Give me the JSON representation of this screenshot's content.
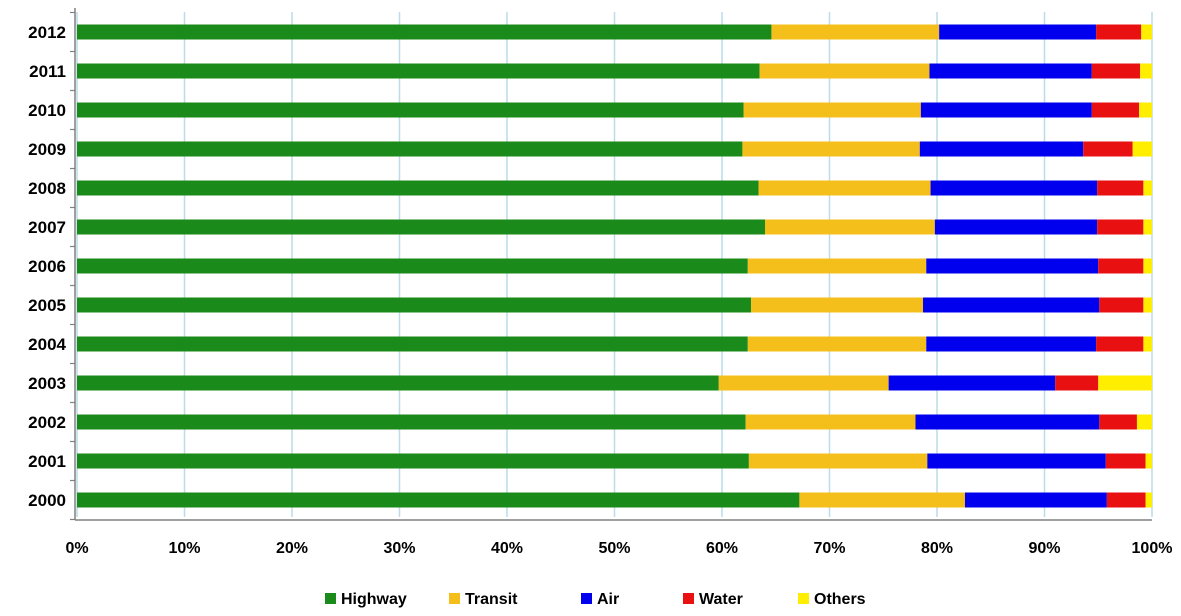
{
  "chart_data": {
    "type": "bar",
    "orientation": "horizontal",
    "stacked": true,
    "normalized": true,
    "categories": [
      "2012",
      "2011",
      "2010",
      "2009",
      "2008",
      "2007",
      "2006",
      "2005",
      "2004",
      "2003",
      "2002",
      "2001",
      "2000"
    ],
    "series": [
      {
        "name": "Highway",
        "color": "#1a8a1a",
        "values": [
          64.6,
          63.5,
          62.0,
          61.9,
          63.4,
          64.0,
          62.4,
          62.7,
          62.4,
          59.7,
          62.2,
          62.5,
          67.2
        ]
      },
      {
        "name": "Transit",
        "color": "#f5bf1b",
        "values": [
          15.6,
          15.8,
          16.5,
          16.5,
          16.0,
          15.8,
          16.6,
          16.0,
          16.6,
          15.8,
          15.8,
          16.6,
          15.4
        ]
      },
      {
        "name": "Air",
        "color": "#0000ee",
        "values": [
          14.6,
          15.1,
          15.9,
          15.2,
          15.5,
          15.1,
          16.0,
          16.4,
          15.8,
          15.5,
          17.1,
          16.6,
          13.2
        ]
      },
      {
        "name": "Water",
        "color": "#e81010",
        "values": [
          4.2,
          4.5,
          4.4,
          4.6,
          4.3,
          4.3,
          4.2,
          4.1,
          4.4,
          4.0,
          3.5,
          3.7,
          3.6
        ]
      },
      {
        "name": "Others",
        "color": "#ffee00",
        "values": [
          1.0,
          1.1,
          1.2,
          1.8,
          0.8,
          0.8,
          0.8,
          0.8,
          0.8,
          5.0,
          1.4,
          0.6,
          0.6
        ]
      }
    ],
    "x_tick_labels": [
      "0%",
      "10%",
      "20%",
      "30%",
      "40%",
      "50%",
      "60%",
      "70%",
      "80%",
      "90%",
      "100%"
    ],
    "xlim": [
      0,
      100
    ],
    "grid": true,
    "legend_position": "bottom"
  }
}
